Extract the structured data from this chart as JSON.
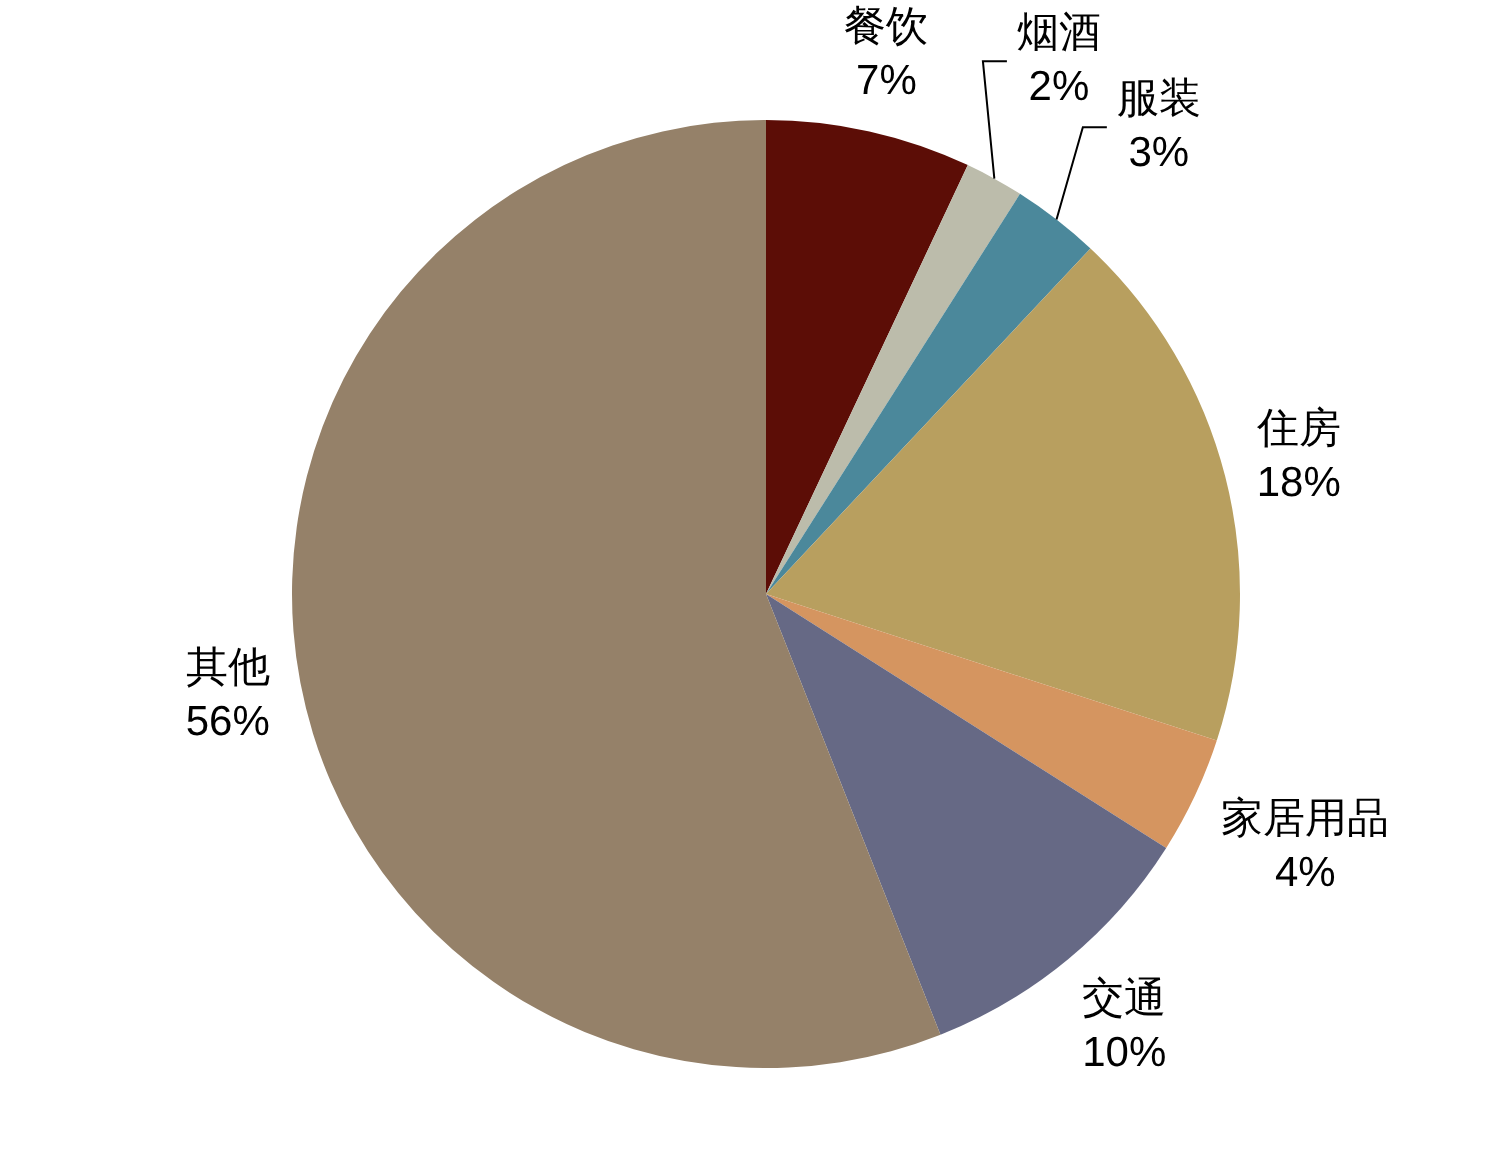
{
  "chart_data": {
    "type": "pie",
    "categories": [
      "餐饮",
      "烟酒",
      "服装",
      "住房",
      "家居用品",
      "交通",
      "其他"
    ],
    "values": [
      7,
      2,
      3,
      18,
      4,
      10,
      56
    ],
    "colors": [
      "#5c0d06",
      "#bcbcab",
      "#4b889b",
      "#b89f5f",
      "#d59560",
      "#666985",
      "#958169"
    ],
    "value_labels": [
      "7%",
      "2%",
      "3%",
      "18%",
      "4%",
      "10%",
      "56%"
    ]
  }
}
